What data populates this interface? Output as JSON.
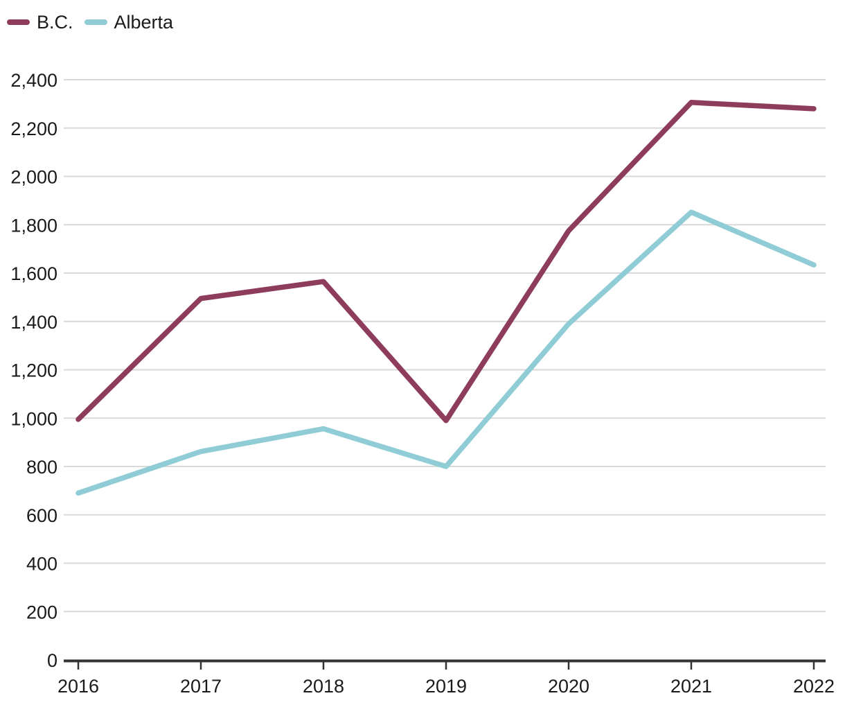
{
  "chart_data": {
    "type": "line",
    "title": "",
    "xlabel": "",
    "ylabel": "",
    "x": [
      "2016",
      "2017",
      "2018",
      "2019",
      "2020",
      "2021",
      "2022"
    ],
    "series": [
      {
        "name": "B.C.",
        "color": "#8d3c5c",
        "values": [
          995,
          1495,
          1565,
          990,
          1775,
          2306,
          2280
        ]
      },
      {
        "name": "Alberta",
        "color": "#8fccd6",
        "values": [
          690,
          862,
          956,
          800,
          1390,
          1852,
          1634
        ]
      }
    ],
    "ylim": [
      0,
      2400
    ],
    "ytick_step": 200,
    "ytick_labels": [
      "0",
      "200",
      "400",
      "600",
      "800",
      "1,000",
      "1,200",
      "1,400",
      "1,600",
      "1,800",
      "2,000",
      "2,200",
      "2,400"
    ],
    "grid": "horizontal",
    "legend_position": "top-left",
    "colors": {
      "background": "#ffffff",
      "text": "#1a1a1a",
      "gridline": "#d9d9d9",
      "axis": "#333333"
    }
  }
}
